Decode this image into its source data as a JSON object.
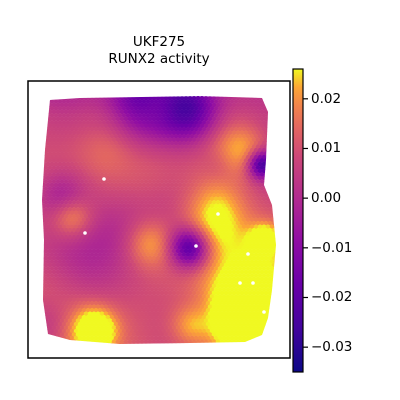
{
  "chart_data": {
    "type": "spatial scatter",
    "title": "UKF275",
    "subtitle": "RUNX2 activity",
    "colormap": "plasma",
    "colorbar": {
      "min": -0.035,
      "max": 0.026,
      "ticks": [
        0.02,
        0.01,
        0.0,
        -0.01,
        -0.02,
        -0.03
      ],
      "tick_labels": [
        "0.02",
        "0.01",
        "0.00",
        "−0.01",
        "−0.02",
        "−0.03"
      ]
    },
    "frame": "box, no tick labels",
    "missing_spots_color": "#ffffff"
  }
}
